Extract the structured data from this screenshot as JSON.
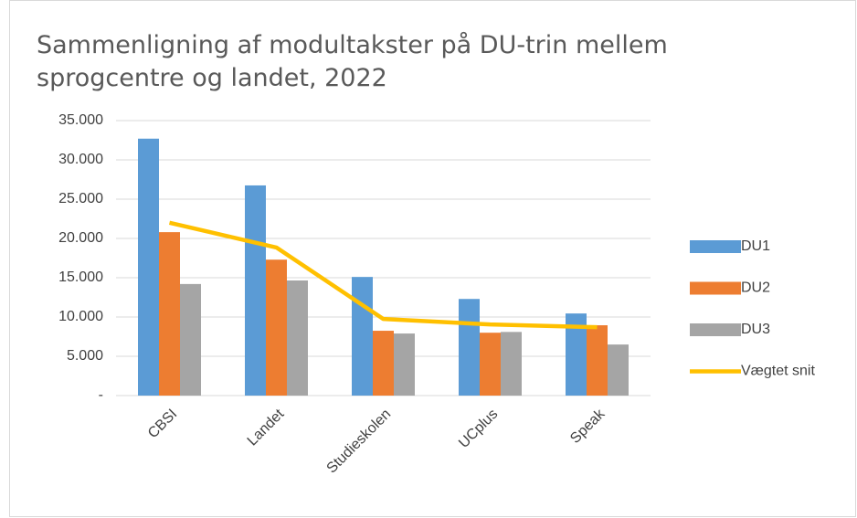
{
  "chart_data": {
    "type": "bar",
    "title": "Sammenligning af modultakster på DU-trin mellem sprogcentre og landet, 2022",
    "categories": [
      "CBSI",
      "Landet",
      "Studieskolen",
      "UCplus",
      "Speak"
    ],
    "series": [
      {
        "name": "DU1",
        "color": "#5b9bd5",
        "values": [
          32700,
          26750,
          15100,
          12300,
          10450
        ]
      },
      {
        "name": "DU2",
        "color": "#ed7d31",
        "values": [
          20800,
          17300,
          8250,
          8000,
          8950
        ]
      },
      {
        "name": "DU3",
        "color": "#a5a5a5",
        "values": [
          14200,
          14650,
          7900,
          8100,
          6500
        ]
      },
      {
        "name": "Vægtet snit",
        "color": "#ffc000",
        "type": "line",
        "values": [
          22000,
          18850,
          9750,
          9050,
          8700
        ]
      }
    ],
    "ylim": [
      0,
      35000
    ],
    "yticks": [
      {
        "value": 0,
        "label": "-"
      },
      {
        "value": 5000,
        "label": "5.000"
      },
      {
        "value": 10000,
        "label": "10.000"
      },
      {
        "value": 15000,
        "label": "15.000"
      },
      {
        "value": 20000,
        "label": "20.000"
      },
      {
        "value": 25000,
        "label": "25.000"
      },
      {
        "value": 30000,
        "label": "30.000"
      },
      {
        "value": 35000,
        "label": "35.000"
      }
    ],
    "grid": true,
    "legend": "right"
  }
}
